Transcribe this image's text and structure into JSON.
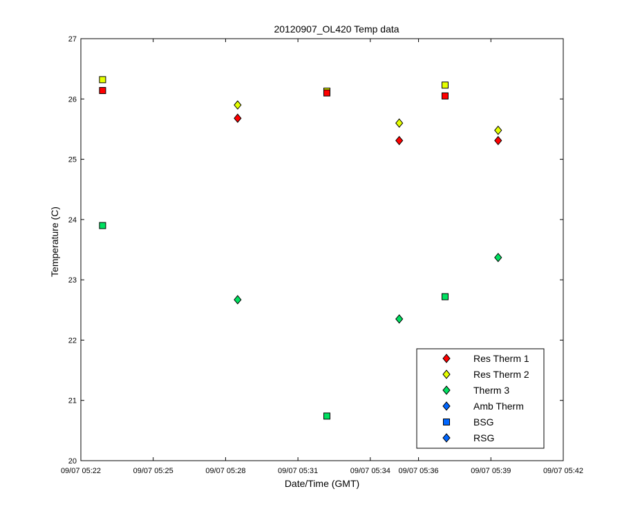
{
  "chart_data": {
    "type": "scatter",
    "title": "20120907_OL420 Temp data",
    "xlabel": "Date/Time (GMT)",
    "ylabel": "Temperature (C)",
    "x_ticks": [
      "09/07 05:22",
      "09/07 05:25",
      "09/07 05:28",
      "09/07 05:31",
      "09/07 05:34",
      "09/07 05:36",
      "09/07 05:39",
      "09/07 05:42"
    ],
    "y_ticks": [
      20,
      21,
      22,
      23,
      24,
      25,
      26,
      27
    ],
    "ylim": [
      20,
      27
    ],
    "grid": false,
    "legend_position": "bottom-right",
    "series": [
      {
        "name": "Res Therm 1",
        "marker": "diamond",
        "color": "#ff0000",
        "points": [
          {
            "x": "09/07 05:28.5",
            "y": 25.68
          },
          {
            "x": "09/07 05:35.2",
            "y": 25.31
          },
          {
            "x": "09/07 05:39.3",
            "y": 25.31
          }
        ]
      },
      {
        "name": "Res Therm 2",
        "marker": "diamond",
        "color": "#e5ff00",
        "points": [
          {
            "x": "09/07 05:28.5",
            "y": 25.9
          },
          {
            "x": "09/07 05:35.2",
            "y": 25.6
          },
          {
            "x": "09/07 05:39.3",
            "y": 25.48
          }
        ]
      },
      {
        "name": "Therm 3",
        "marker": "diamond",
        "color": "#00e060",
        "points": [
          {
            "x": "09/07 05:28.5",
            "y": 22.67
          },
          {
            "x": "09/07 05:35.2",
            "y": 22.35
          },
          {
            "x": "09/07 05:39.3",
            "y": 23.37
          }
        ]
      },
      {
        "name": "Amb Therm",
        "marker": "diamond",
        "color": "#0066ff",
        "points": []
      },
      {
        "name": "BSG",
        "marker": "square",
        "color": "#0066ff",
        "points": []
      },
      {
        "name": "RSG",
        "marker": "diamond",
        "color": "#0066ff",
        "points": []
      }
    ],
    "square_points": [
      {
        "color": "#e5ff00",
        "points": [
          {
            "x": "09/07 05:22.9",
            "y": 26.32
          },
          {
            "x": "09/07 05:32.2",
            "y": 26.13
          },
          {
            "x": "09/07 05:37.1",
            "y": 26.23
          }
        ]
      },
      {
        "color": "#ff0000",
        "points": [
          {
            "x": "09/07 05:22.9",
            "y": 26.14
          },
          {
            "x": "09/07 05:32.2",
            "y": 26.1
          },
          {
            "x": "09/07 05:37.1",
            "y": 26.05
          }
        ]
      },
      {
        "color": "#00e060",
        "points": [
          {
            "x": "09/07 05:22.9",
            "y": 23.9
          },
          {
            "x": "09/07 05:32.2",
            "y": 20.74
          },
          {
            "x": "09/07 05:37.1",
            "y": 22.72
          }
        ]
      }
    ]
  }
}
